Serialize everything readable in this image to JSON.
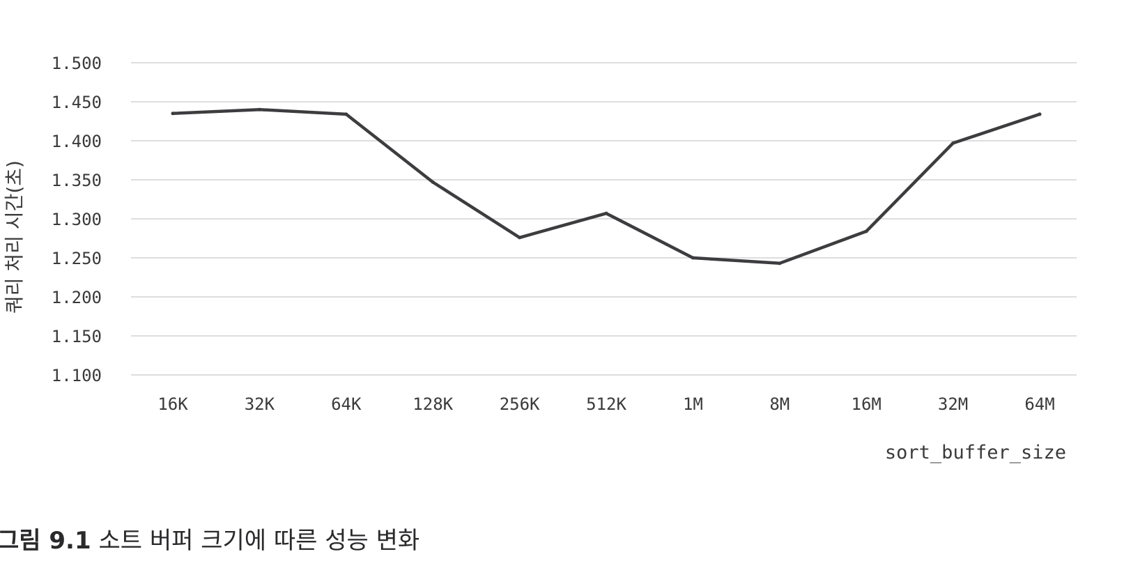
{
  "chart_data": {
    "type": "line",
    "categories": [
      "16K",
      "32K",
      "64K",
      "128K",
      "256K",
      "512K",
      "1M",
      "8M",
      "16M",
      "32M",
      "64M"
    ],
    "series": [
      {
        "values": [
          1.435,
          1.44,
          1.434,
          1.347,
          1.276,
          1.307,
          1.25,
          1.243,
          1.284,
          1.397,
          1.434
        ]
      }
    ],
    "xlabel": "sort_buffer_size",
    "ylabel": "쿼리 처리 시간(초)",
    "ylim": [
      1.1,
      1.5
    ],
    "yticks": [
      "1.500",
      "1.450",
      "1.400",
      "1.350",
      "1.300",
      "1.250",
      "1.200",
      "1.150",
      "1.100"
    ],
    "grid": true,
    "legend": "none",
    "line_color": "#3d3d40",
    "grid_color": "#d4d4d4"
  },
  "caption": {
    "label": "그림 9.1",
    "text": "소트 버퍼 크기에 따른 성능 변화"
  }
}
